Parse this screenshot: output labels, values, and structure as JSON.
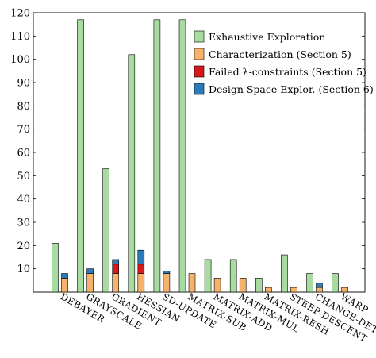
{
  "chart_data": {
    "type": "bar",
    "categories": [
      "DEBAYER",
      "GRAYSCALE",
      "GRADIENT",
      "HESSIAN",
      "SD-UPDATE",
      "MATRIX-SUB",
      "MATRIX-ADD",
      "MATRIX-MUL",
      "MATRIX-RESH",
      "STEEP-DESCENT",
      "CHANGE-DET",
      "WARP"
    ],
    "series": [
      {
        "name": "Exhaustive Exploration",
        "color": "#a8dba0",
        "values": [
          21,
          117,
          53,
          102,
          117,
          117,
          14,
          14,
          6,
          16,
          8,
          8
        ],
        "stack": "exhaustive"
      },
      {
        "name": "Characterization (Section 5)",
        "color": "#f6b26b",
        "values": [
          6,
          8,
          8,
          8,
          8,
          8,
          6,
          6,
          2,
          2,
          2,
          2
        ],
        "stack": "proposed"
      },
      {
        "name": "Failed λ-constraints (Section 5)",
        "color": "#d7191c",
        "values": [
          0,
          0,
          4,
          4,
          0,
          0,
          0,
          0,
          0,
          0,
          0,
          0
        ],
        "stack": "proposed"
      },
      {
        "name": "Design Space Explor. (Section 6)",
        "color": "#2b7bba",
        "values": [
          2,
          2,
          2,
          6,
          1,
          0,
          0,
          0,
          0,
          0,
          2,
          0
        ],
        "stack": "proposed"
      }
    ],
    "ylim": [
      0,
      120
    ],
    "yticks": [
      10,
      20,
      30,
      40,
      50,
      60,
      70,
      80,
      90,
      100,
      110,
      120
    ],
    "xlabel": "",
    "ylabel": "",
    "legend_position": "top-right",
    "grid": false
  }
}
